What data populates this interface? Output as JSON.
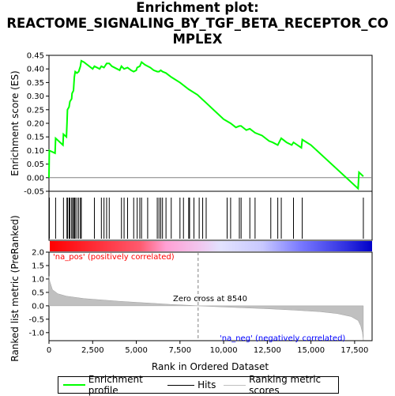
{
  "chart_data": {
    "type": "line",
    "title": "Enrichment plot: REACTOME_SIGNALING_BY_TGF_BETA_RECEPTOR_COMPLEX",
    "title_lines": [
      "Enrichment plot:",
      "REACTOME_SIGNALING_BY_TGF_BETA_RECEPTOR_CO",
      "MPLEX"
    ],
    "top_panel": {
      "ylabel": "Enrichment score (ES)",
      "ylim": [
        -0.05,
        0.45
      ],
      "yticks": [
        "-0.05",
        "0.00",
        "0.05",
        "0.10",
        "0.15",
        "0.20",
        "0.25",
        "0.30",
        "0.35",
        "0.40",
        "0.45"
      ],
      "series": [
        {
          "name": "Enrichment profile",
          "color": "#00ff00",
          "points": [
            [
              0,
              0.0
            ],
            [
              20,
              0.1
            ],
            [
              350,
              0.09
            ],
            [
              380,
              0.145
            ],
            [
              800,
              0.12
            ],
            [
              830,
              0.16
            ],
            [
              1000,
              0.15
            ],
            [
              1030,
              0.2
            ],
            [
              1060,
              0.25
            ],
            [
              1150,
              0.26
            ],
            [
              1200,
              0.28
            ],
            [
              1300,
              0.29
            ],
            [
              1320,
              0.31
            ],
            [
              1400,
              0.32
            ],
            [
              1450,
              0.37
            ],
            [
              1500,
              0.39
            ],
            [
              1600,
              0.385
            ],
            [
              1700,
              0.39
            ],
            [
              1800,
              0.41
            ],
            [
              1850,
              0.43
            ],
            [
              2000,
              0.425
            ],
            [
              2500,
              0.4
            ],
            [
              2600,
              0.41
            ],
            [
              2900,
              0.4
            ],
            [
              3000,
              0.41
            ],
            [
              3150,
              0.405
            ],
            [
              3300,
              0.42
            ],
            [
              3450,
              0.42
            ],
            [
              3600,
              0.41
            ],
            [
              3900,
              0.4
            ],
            [
              4050,
              0.395
            ],
            [
              4150,
              0.41
            ],
            [
              4300,
              0.4
            ],
            [
              4500,
              0.405
            ],
            [
              4700,
              0.395
            ],
            [
              4850,
              0.39
            ],
            [
              5000,
              0.395
            ],
            [
              5050,
              0.405
            ],
            [
              5200,
              0.41
            ],
            [
              5300,
              0.425
            ],
            [
              5500,
              0.415
            ],
            [
              5650,
              0.41
            ],
            [
              5800,
              0.405
            ],
            [
              6000,
              0.395
            ],
            [
              6200,
              0.39
            ],
            [
              6300,
              0.39
            ],
            [
              6400,
              0.395
            ],
            [
              6500,
              0.39
            ],
            [
              6700,
              0.385
            ],
            [
              7000,
              0.37
            ],
            [
              7500,
              0.35
            ],
            [
              8000,
              0.325
            ],
            [
              8500,
              0.305
            ],
            [
              9000,
              0.275
            ],
            [
              9500,
              0.245
            ],
            [
              10000,
              0.215
            ],
            [
              10400,
              0.2
            ],
            [
              10700,
              0.185
            ],
            [
              10900,
              0.19
            ],
            [
              11000,
              0.19
            ],
            [
              11300,
              0.175
            ],
            [
              11500,
              0.18
            ],
            [
              11800,
              0.165
            ],
            [
              12200,
              0.155
            ],
            [
              12600,
              0.135
            ],
            [
              12800,
              0.13
            ],
            [
              13100,
              0.12
            ],
            [
              13300,
              0.145
            ],
            [
              13600,
              0.13
            ],
            [
              13900,
              0.12
            ],
            [
              14000,
              0.13
            ],
            [
              14450,
              0.11
            ],
            [
              14500,
              0.14
            ],
            [
              15000,
              0.12
            ],
            [
              17700,
              -0.04
            ],
            [
              17750,
              0.02
            ],
            [
              18000,
              0.005
            ]
          ]
        }
      ],
      "hits_label": "Hits"
    },
    "hit_positions": [
      20,
      380,
      830,
      1030,
      1060,
      1150,
      1200,
      1300,
      1320,
      1400,
      1450,
      1500,
      1600,
      1700,
      1800,
      1850,
      2600,
      3000,
      3150,
      3300,
      3450,
      4150,
      4300,
      4500,
      4850,
      5050,
      5200,
      5300,
      5650,
      6200,
      6300,
      6400,
      6500,
      6700,
      7000,
      7500,
      7700,
      8000,
      8050,
      8300,
      8600,
      8800,
      9000,
      10200,
      10400,
      10900,
      11000,
      11500,
      11800,
      12700,
      13100,
      13300,
      14000,
      14500,
      18000
    ],
    "bottom_panel": {
      "ylabel": "Ranked list metric (PreRanked)",
      "xlabel": "Rank in Ordered Dataset",
      "ylim": [
        -1.3,
        2.0
      ],
      "yticks": [
        "-1.0",
        "-0.5",
        "0.0",
        "0.5",
        "1.0",
        "1.5",
        "2.0"
      ],
      "xlim": [
        0,
        18500
      ],
      "xticks": [
        "0",
        "2,500",
        "5,000",
        "7,500",
        "10,000",
        "12,500",
        "15,000",
        "17,500"
      ],
      "metric_profile": [
        [
          0,
          1.1
        ],
        [
          50,
          0.9
        ],
        [
          200,
          0.6
        ],
        [
          500,
          0.45
        ],
        [
          1000,
          0.36
        ],
        [
          2000,
          0.27
        ],
        [
          3000,
          0.22
        ],
        [
          4000,
          0.17
        ],
        [
          5000,
          0.13
        ],
        [
          6000,
          0.09
        ],
        [
          7000,
          0.05
        ],
        [
          8000,
          0.02
        ],
        [
          8540,
          0.0
        ],
        [
          9500,
          -0.03
        ],
        [
          11000,
          -0.07
        ],
        [
          12500,
          -0.11
        ],
        [
          14000,
          -0.16
        ],
        [
          15500,
          -0.22
        ],
        [
          16500,
          -0.29
        ],
        [
          17300,
          -0.4
        ],
        [
          17700,
          -0.55
        ],
        [
          17850,
          -0.75
        ],
        [
          17950,
          -1.0
        ],
        [
          18000,
          -1.28
        ]
      ],
      "zero_cross": 8540,
      "zero_cross_label": "Zero cross at 8540",
      "pos_label": "'na_pos' (positively correlated)",
      "neg_label": "'na_neg' (negatively correlated)"
    },
    "legend": [
      "Enrichment profile",
      "Hits",
      "Ranking metric scores"
    ],
    "colors": {
      "profile": "#00ff00",
      "hits": "#000000",
      "metric_fill": "#c0c0c0",
      "pos_label": "#ff0000",
      "neg_label": "#0000ff",
      "zero_line": "#808080"
    }
  }
}
